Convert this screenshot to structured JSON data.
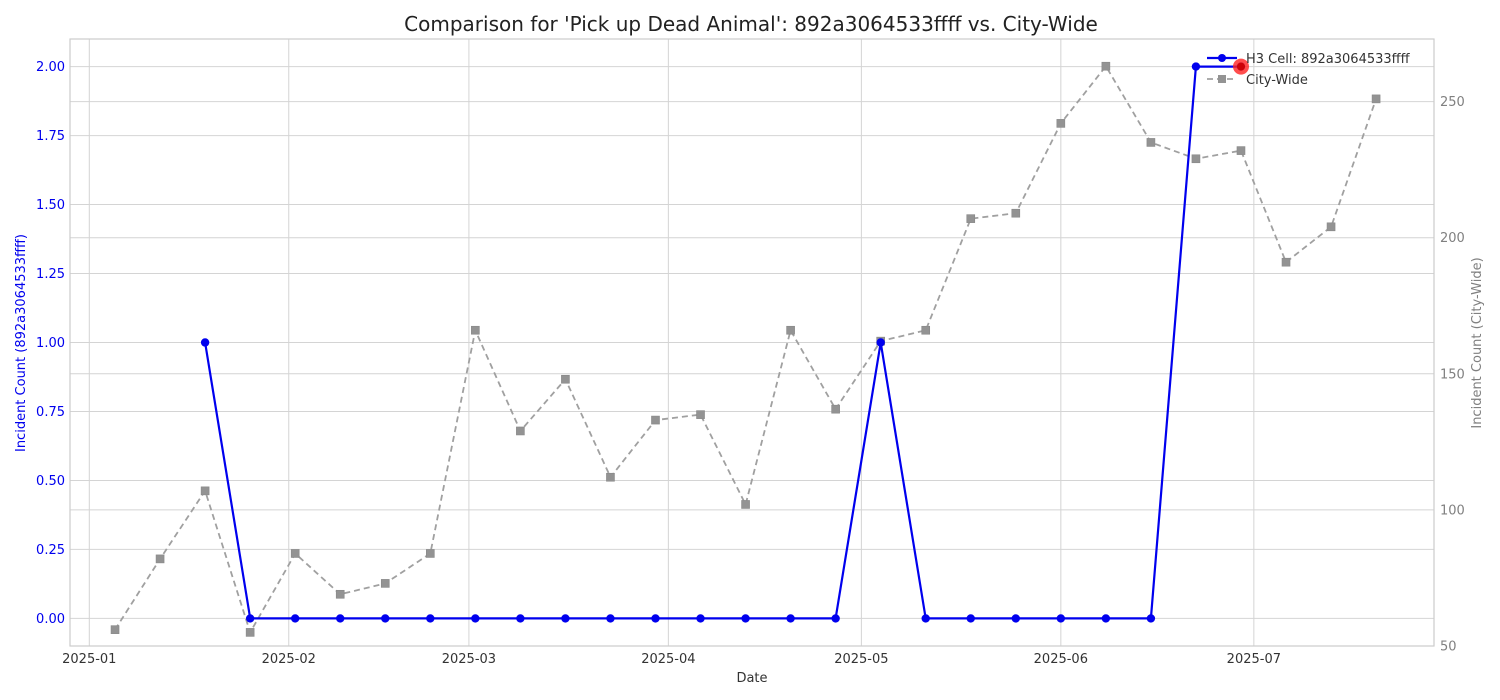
{
  "chart_data": {
    "type": "line",
    "title": "Comparison for 'Pick up Dead Animal': 892a3064533ffff vs. City-Wide",
    "xlabel": "Date",
    "ylabel_left": "Incident Count (892a3064533ffff)",
    "ylabel_right": "Incident Count (City-Wide)",
    "xlim": [
      "2024-12-29",
      "2025-07-29"
    ],
    "ylim_left": [
      -0.1,
      2.1
    ],
    "ylim_right": [
      50,
      273
    ],
    "x_ticks": [
      "2025-01",
      "2025-02",
      "2025-03",
      "2025-04",
      "2025-05",
      "2025-06",
      "2025-07"
    ],
    "y_ticks_left": [
      "0.00",
      "0.25",
      "0.50",
      "0.75",
      "1.00",
      "1.25",
      "1.50",
      "1.75",
      "2.00"
    ],
    "y_ticks_right": [
      "50",
      "100",
      "150",
      "200",
      "250"
    ],
    "grid": true,
    "legend_position": "top-right",
    "colors": {
      "h3": "#0000ee",
      "city": "#a0a0a0",
      "highlight": "#ff2020",
      "left_axis": "#0000ee",
      "right_axis": "#808080"
    },
    "series": [
      {
        "name": "H3 Cell: 892a3064533ffff",
        "axis": "left",
        "style": "solid",
        "marker": "circle",
        "x": [
          "2025-01-19",
          "2025-01-26",
          "2025-02-02",
          "2025-02-09",
          "2025-02-16",
          "2025-02-23",
          "2025-03-02",
          "2025-03-09",
          "2025-03-16",
          "2025-03-23",
          "2025-03-30",
          "2025-04-06",
          "2025-04-13",
          "2025-04-20",
          "2025-04-27",
          "2025-05-04",
          "2025-05-11",
          "2025-05-18",
          "2025-05-25",
          "2025-06-01",
          "2025-06-08",
          "2025-06-15",
          "2025-06-22",
          "2025-06-29"
        ],
        "values": [
          1,
          0,
          0,
          0,
          0,
          0,
          0,
          0,
          0,
          0,
          0,
          0,
          0,
          0,
          0,
          1,
          0,
          0,
          0,
          0,
          0,
          0,
          2,
          2
        ]
      },
      {
        "name": "City-Wide",
        "axis": "right",
        "style": "dashed",
        "marker": "square",
        "x": [
          "2025-01-05",
          "2025-01-12",
          "2025-01-19",
          "2025-01-26",
          "2025-02-02",
          "2025-02-09",
          "2025-02-16",
          "2025-02-23",
          "2025-03-02",
          "2025-03-09",
          "2025-03-16",
          "2025-03-23",
          "2025-03-30",
          "2025-04-06",
          "2025-04-13",
          "2025-04-20",
          "2025-04-27",
          "2025-05-04",
          "2025-05-11",
          "2025-05-18",
          "2025-05-25",
          "2025-06-01",
          "2025-06-08",
          "2025-06-15",
          "2025-06-22",
          "2025-06-29",
          "2025-07-06",
          "2025-07-13",
          "2025-07-20"
        ],
        "values": [
          56,
          82,
          107,
          55,
          84,
          69,
          73,
          84,
          166,
          129,
          148,
          112,
          133,
          135,
          102,
          166,
          137,
          162,
          166,
          207,
          209,
          242,
          263,
          235,
          229,
          232,
          191,
          204,
          251
        ]
      }
    ],
    "highlight": {
      "x": "2025-06-29",
      "value": 2,
      "axis": "left"
    }
  }
}
